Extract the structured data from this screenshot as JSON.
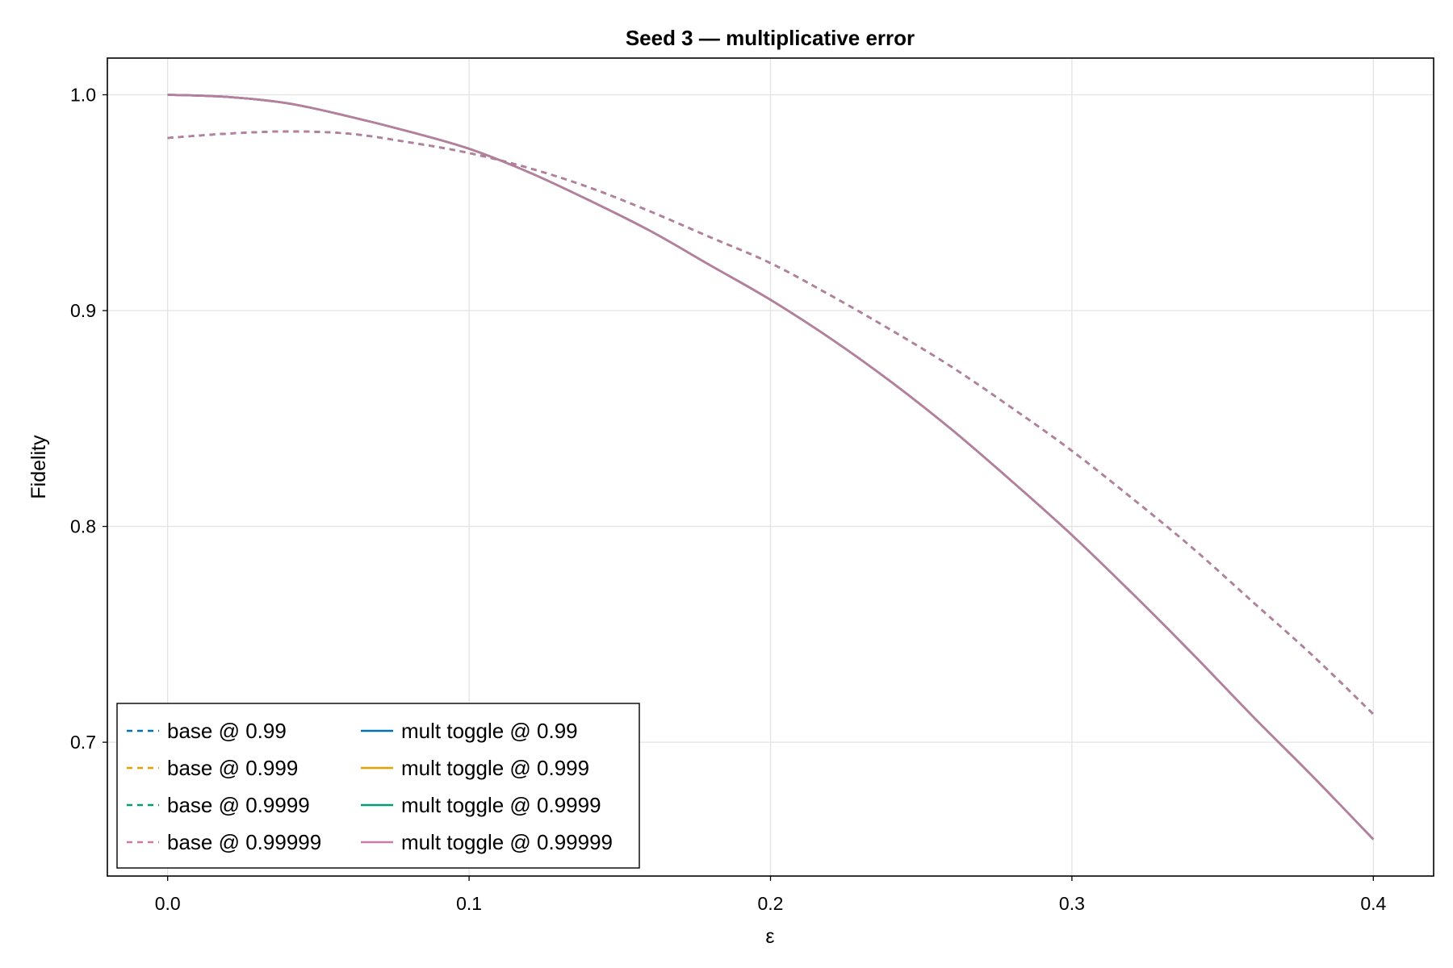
{
  "chart_data": {
    "type": "line",
    "title": "Seed 3 — multiplicative error",
    "xlabel": "ε",
    "ylabel": "Fidelity",
    "xlim": [
      -0.02,
      0.42
    ],
    "ylim": [
      0.638,
      1.017
    ],
    "x_ticks": [
      0.0,
      0.1,
      0.2,
      0.3,
      0.4
    ],
    "x_tick_labels": [
      "0.0",
      "0.1",
      "0.2",
      "0.3",
      "0.4"
    ],
    "y_ticks": [
      0.7,
      0.8,
      0.9,
      1.0
    ],
    "y_tick_labels": [
      "0.7",
      "0.8",
      "0.9",
      "1.0"
    ],
    "grid": true,
    "legend_position": "bottom-left",
    "x": [
      0.0,
      0.02,
      0.04,
      0.06,
      0.08,
      0.1,
      0.12,
      0.14,
      0.16,
      0.18,
      0.2,
      0.22,
      0.24,
      0.26,
      0.28,
      0.3,
      0.32,
      0.34,
      0.36,
      0.38,
      0.4
    ],
    "series": [
      {
        "name": "base @ 0.99",
        "style": "dashed",
        "color": "#0072b2",
        "values": [
          0.98,
          0.982,
          0.983,
          0.982,
          0.978,
          0.973,
          0.966,
          0.957,
          0.946,
          0.934,
          0.922,
          0.907,
          0.891,
          0.874,
          0.855,
          0.835,
          0.813,
          0.79,
          0.765,
          0.74,
          0.713
        ]
      },
      {
        "name": "base @ 0.999",
        "style": "dashed",
        "color": "#e69f00",
        "values": [
          0.98,
          0.982,
          0.983,
          0.982,
          0.978,
          0.973,
          0.966,
          0.957,
          0.946,
          0.934,
          0.922,
          0.907,
          0.891,
          0.874,
          0.855,
          0.835,
          0.813,
          0.79,
          0.765,
          0.74,
          0.713
        ]
      },
      {
        "name": "base @ 0.9999",
        "style": "dashed",
        "color": "#009e73",
        "values": [
          0.98,
          0.982,
          0.983,
          0.982,
          0.978,
          0.973,
          0.966,
          0.957,
          0.946,
          0.934,
          0.922,
          0.907,
          0.891,
          0.874,
          0.855,
          0.835,
          0.813,
          0.79,
          0.765,
          0.74,
          0.713
        ]
      },
      {
        "name": "base @ 0.99999",
        "style": "dashed",
        "color": "#cc79a7",
        "values": [
          0.98,
          0.982,
          0.983,
          0.982,
          0.978,
          0.973,
          0.966,
          0.957,
          0.946,
          0.934,
          0.922,
          0.907,
          0.891,
          0.874,
          0.855,
          0.835,
          0.813,
          0.79,
          0.765,
          0.74,
          0.713
        ]
      },
      {
        "name": "mult toggle @ 0.99",
        "style": "solid",
        "color": "#0072b2",
        "values": [
          1.0,
          0.999,
          0.996,
          0.99,
          0.983,
          0.975,
          0.964,
          0.951,
          0.937,
          0.921,
          0.905,
          0.887,
          0.867,
          0.845,
          0.821,
          0.796,
          0.769,
          0.741,
          0.712,
          0.684,
          0.655
        ]
      },
      {
        "name": "mult toggle @ 0.999",
        "style": "solid",
        "color": "#e69f00",
        "values": [
          1.0,
          0.999,
          0.996,
          0.99,
          0.983,
          0.975,
          0.964,
          0.951,
          0.937,
          0.921,
          0.905,
          0.887,
          0.867,
          0.845,
          0.821,
          0.796,
          0.769,
          0.741,
          0.712,
          0.684,
          0.655
        ]
      },
      {
        "name": "mult toggle @ 0.9999",
        "style": "solid",
        "color": "#009e73",
        "values": [
          1.0,
          0.999,
          0.996,
          0.99,
          0.983,
          0.975,
          0.964,
          0.951,
          0.937,
          0.921,
          0.905,
          0.887,
          0.867,
          0.845,
          0.821,
          0.796,
          0.769,
          0.741,
          0.712,
          0.684,
          0.655
        ]
      },
      {
        "name": "mult toggle @ 0.99999",
        "style": "solid",
        "color": "#cc79a7",
        "values": [
          1.0,
          0.999,
          0.996,
          0.99,
          0.983,
          0.975,
          0.964,
          0.951,
          0.937,
          0.921,
          0.905,
          0.887,
          0.867,
          0.845,
          0.821,
          0.796,
          0.769,
          0.741,
          0.712,
          0.684,
          0.655
        ]
      }
    ]
  }
}
